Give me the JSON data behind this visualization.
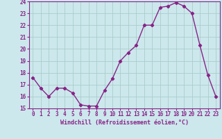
{
  "x": [
    0,
    1,
    2,
    3,
    4,
    5,
    6,
    7,
    8,
    9,
    10,
    11,
    12,
    13,
    14,
    15,
    16,
    17,
    18,
    19,
    20,
    21,
    22,
    23
  ],
  "y": [
    17.6,
    16.7,
    16.0,
    16.7,
    16.7,
    16.3,
    15.3,
    15.2,
    15.2,
    16.5,
    17.5,
    19.0,
    19.7,
    20.3,
    22.0,
    22.0,
    23.5,
    23.6,
    23.9,
    23.6,
    23.0,
    20.3,
    17.8,
    16.0
  ],
  "line_color": "#882288",
  "marker": "D",
  "marker_size": 2.2,
  "bg_color": "#cce8ec",
  "grid_color": "#aacccc",
  "xlabel": "Windchill (Refroidissement éolien,°C)",
  "xlabel_color": "#882288",
  "tick_color": "#882288",
  "spine_color": "#882288",
  "ylim": [
    15,
    24
  ],
  "xlim": [
    -0.5,
    23.5
  ],
  "yticks": [
    15,
    16,
    17,
    18,
    19,
    20,
    21,
    22,
    23,
    24
  ],
  "xticks": [
    0,
    1,
    2,
    3,
    4,
    5,
    6,
    7,
    8,
    9,
    10,
    11,
    12,
    13,
    14,
    15,
    16,
    17,
    18,
    19,
    20,
    21,
    22,
    23
  ],
  "tick_fontsize": 5.5,
  "xlabel_fontsize": 6.0,
  "linewidth": 1.0
}
